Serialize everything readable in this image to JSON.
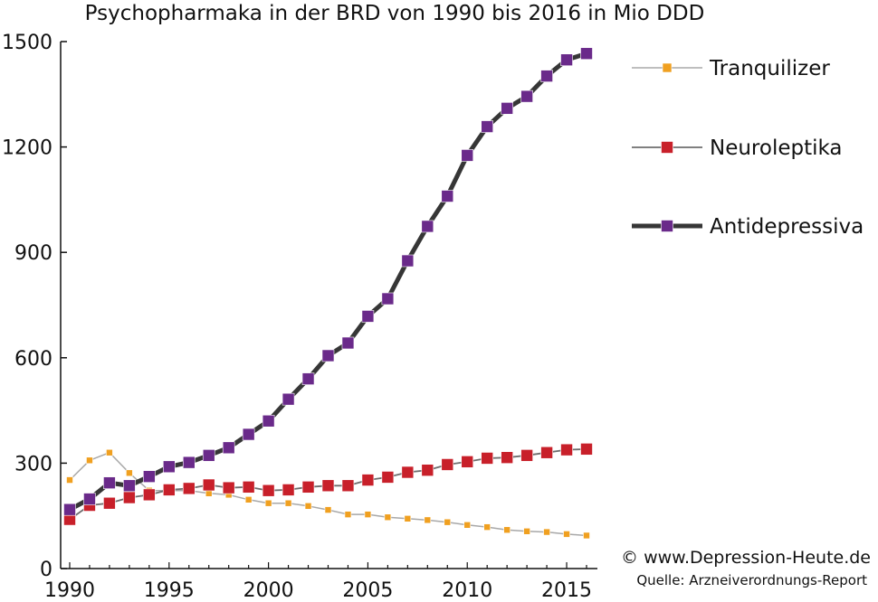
{
  "chart_data": {
    "type": "line",
    "title": "Psychopharmaka in der BRD von 1990 bis 2016 in Mio DDD",
    "xlabel": "",
    "ylabel": "",
    "xlim": [
      1990,
      2016
    ],
    "ylim": [
      0,
      1500
    ],
    "xticks": [
      1990,
      1995,
      2000,
      2005,
      2010,
      2015
    ],
    "xtick_labels": [
      "1990",
      "1995",
      "2000",
      "2005",
      "2010",
      "2015"
    ],
    "yticks": [
      0,
      300,
      600,
      900,
      1200,
      1500
    ],
    "ytick_labels": [
      "0",
      "300",
      "600",
      "900",
      "1200",
      "1500"
    ],
    "grid": false,
    "legend_position": "right",
    "x": [
      1990,
      1991,
      1992,
      1993,
      1994,
      1995,
      1996,
      1997,
      1998,
      1999,
      2000,
      2001,
      2002,
      2003,
      2004,
      2005,
      2006,
      2007,
      2008,
      2009,
      2010,
      2011,
      2012,
      2013,
      2014,
      2015,
      2016
    ],
    "series": [
      {
        "name": "Tranquilizer",
        "color": "#f0a020",
        "line_color": "#a8a8a8",
        "values": [
          252,
          308,
          330,
          272,
          222,
          222,
          222,
          214,
          210,
          196,
          186,
          186,
          178,
          167,
          154,
          154,
          146,
          142,
          138,
          132,
          124,
          118,
          110,
          106,
          104,
          98,
          94
        ]
      },
      {
        "name": "Neuroleptika",
        "color": "#c8202a",
        "line_color": "#6e6e6e",
        "values": [
          140,
          180,
          186,
          202,
          210,
          224,
          228,
          238,
          230,
          232,
          222,
          224,
          232,
          236,
          236,
          252,
          260,
          274,
          280,
          296,
          304,
          314,
          316,
          322,
          330,
          338,
          340
        ]
      },
      {
        "name": "Antidepressiva",
        "color": "#6a2a8a",
        "line_color": "#363636",
        "values": [
          168,
          198,
          244,
          236,
          262,
          290,
          302,
          322,
          344,
          382,
          420,
          482,
          540,
          606,
          642,
          718,
          768,
          876,
          974,
          1060,
          1176,
          1258,
          1310,
          1344,
          1402,
          1448,
          1466
        ]
      }
    ]
  },
  "footer": {
    "copyright": "© www.Depression-Heute.de",
    "source": "Quelle: Arzneiverordnungs-Report"
  }
}
